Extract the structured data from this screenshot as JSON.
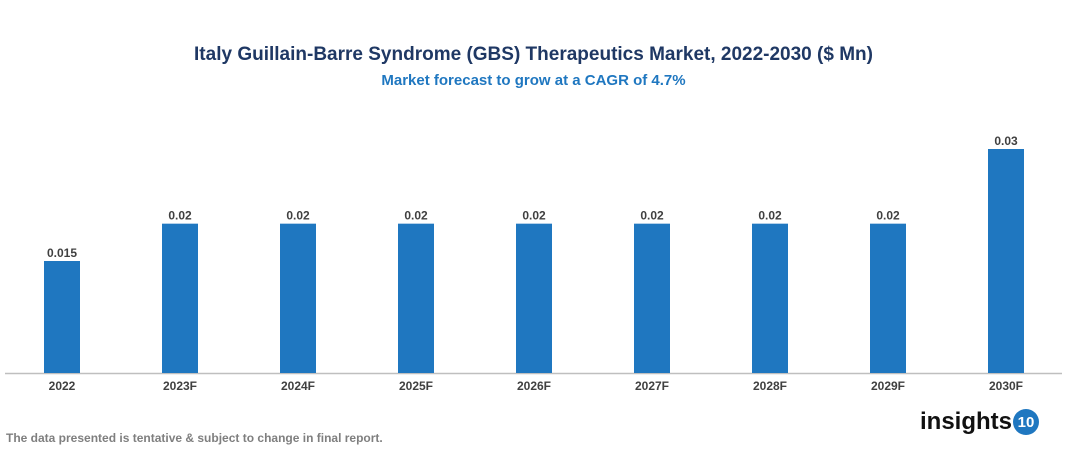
{
  "chart_data": {
    "type": "bar",
    "title": "Italy Guillain-Barre Syndrome (GBS) Therapeutics Market, 2022-2030 ($ Mn)",
    "subtitle": "Market forecast to grow at a CAGR of 4.7%",
    "categories": [
      "2022",
      "2023F",
      "2024F",
      "2025F",
      "2026F",
      "2027F",
      "2028F",
      "2029F",
      "2030F"
    ],
    "values": [
      0.015,
      0.02,
      0.02,
      0.02,
      0.02,
      0.02,
      0.02,
      0.02,
      0.03
    ],
    "labels": [
      "0.015",
      "0.02",
      "0.02",
      "0.02",
      "0.02",
      "0.02",
      "0.02",
      "0.02",
      "0.03"
    ],
    "xlabel": "",
    "ylabel": "",
    "ylim": [
      0,
      0.03
    ],
    "grid": false,
    "bar_color": "#1f77c0"
  },
  "footer": "The data presented is tentative & subject to change in final report.",
  "logo": {
    "text": "insights",
    "badge": "10"
  }
}
